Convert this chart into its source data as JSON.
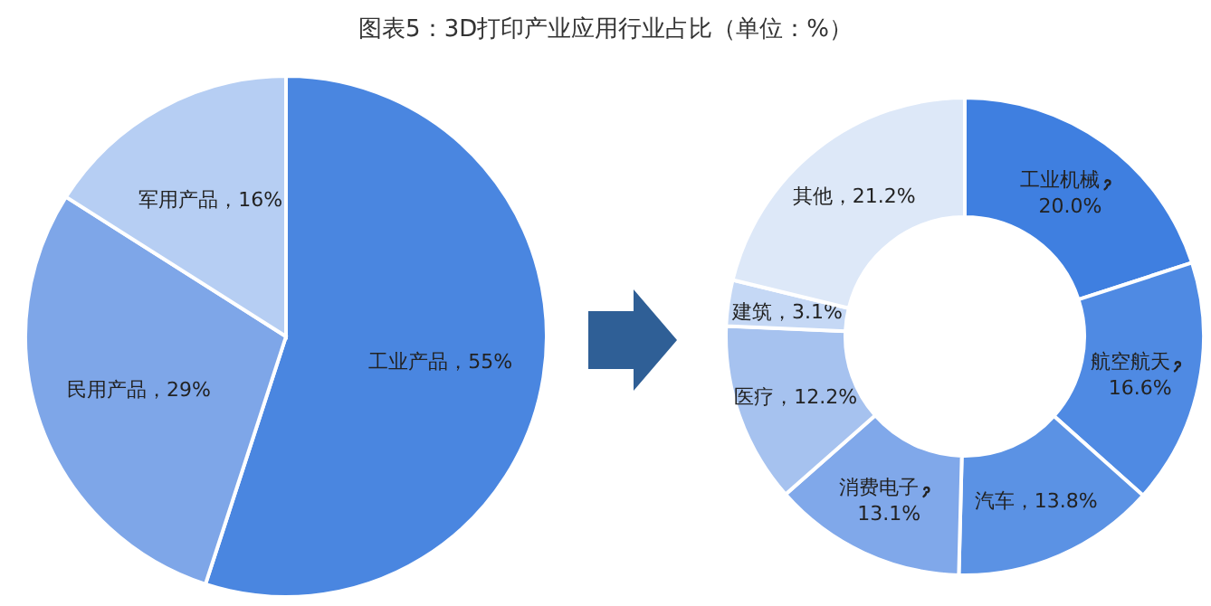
{
  "chart_data": [
    {
      "type": "pie",
      "title": "图表5：3D打印产业应用行业占比（单位：%）",
      "categories": [
        "工业产品",
        "民用产品",
        "军用产品"
      ],
      "values": [
        55,
        29,
        16
      ],
      "value_labels": [
        "55%",
        "29%",
        "16%"
      ],
      "colors": [
        "#4a86e0",
        "#7ea6e8",
        "#b6cef3"
      ]
    },
    {
      "type": "donut",
      "categories": [
        "工业机械",
        "航空航天",
        "汽车",
        "消费电子",
        "医疗",
        "建筑",
        "其他"
      ],
      "values": [
        20.0,
        16.6,
        13.8,
        13.1,
        12.2,
        3.1,
        21.2
      ],
      "value_labels": [
        "20.0%",
        "16.6%",
        "13.8%",
        "13.1%",
        "12.2%",
        "3.1%",
        "21.2%"
      ],
      "colors": [
        "#3f7fe0",
        "#4f8ae3",
        "#5b92e4",
        "#80a8ea",
        "#a6c2ef",
        "#c5d8f5",
        "#dde8f8"
      ]
    }
  ]
}
